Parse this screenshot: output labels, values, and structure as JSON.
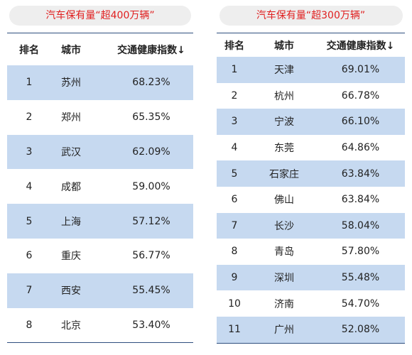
{
  "left": {
    "title": "汽车保有量“超400万辆”",
    "headers": {
      "rank": "排名",
      "city": "城市",
      "index": "交通健康指数↓"
    },
    "rows": [
      {
        "rank": "1",
        "city": "苏州",
        "index": "68.23%"
      },
      {
        "rank": "2",
        "city": "郑州",
        "index": "65.35%"
      },
      {
        "rank": "3",
        "city": "武汉",
        "index": "62.09%"
      },
      {
        "rank": "4",
        "city": "成都",
        "index": "59.00%"
      },
      {
        "rank": "5",
        "city": "上海",
        "index": "57.12%"
      },
      {
        "rank": "6",
        "city": "重庆",
        "index": "56.77%"
      },
      {
        "rank": "7",
        "city": "西安",
        "index": "55.45%"
      },
      {
        "rank": "8",
        "city": "北京",
        "index": "53.40%"
      }
    ]
  },
  "right": {
    "title": "汽车保有量“超300万辆”",
    "headers": {
      "rank": "排名",
      "city": "城市",
      "index": "交通健康指数↓"
    },
    "rows": [
      {
        "rank": "1",
        "city": "天津",
        "index": "69.01%"
      },
      {
        "rank": "2",
        "city": "杭州",
        "index": "66.78%"
      },
      {
        "rank": "3",
        "city": "宁波",
        "index": "66.10%"
      },
      {
        "rank": "4",
        "city": "东莞",
        "index": "64.86%"
      },
      {
        "rank": "5",
        "city": "石家庄",
        "index": "63.84%"
      },
      {
        "rank": "6",
        "city": "佛山",
        "index": "63.84%"
      },
      {
        "rank": "7",
        "city": "长沙",
        "index": "58.04%"
      },
      {
        "rank": "8",
        "city": "青岛",
        "index": "57.80%"
      },
      {
        "rank": "9",
        "city": "深圳",
        "index": "55.48%"
      },
      {
        "rank": "10",
        "city": "济南",
        "index": "54.70%"
      },
      {
        "rank": "11",
        "city": "广州",
        "index": "52.08%"
      }
    ]
  },
  "colors": {
    "title_text": "#e02020",
    "title_bg": "#eeeeee",
    "row_shade": "#c6d9f0",
    "rule": "#2e4e7e"
  }
}
